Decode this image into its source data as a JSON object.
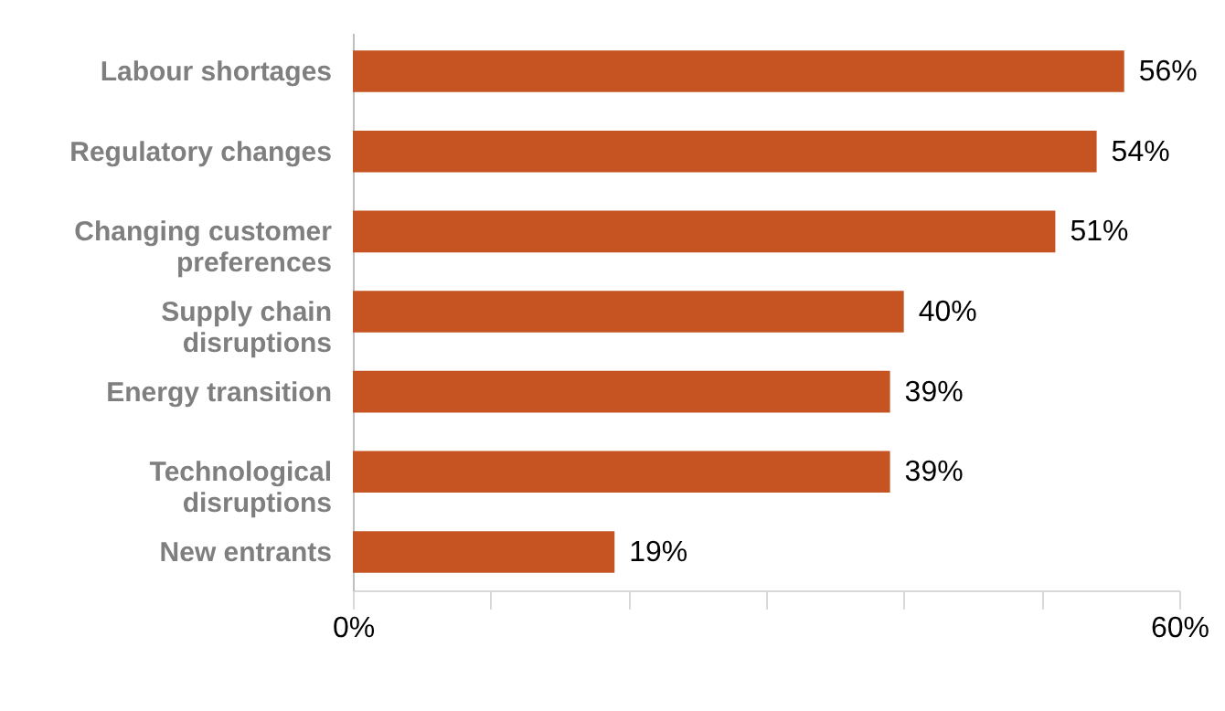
{
  "chart_data": {
    "type": "bar",
    "orientation": "horizontal",
    "categories": [
      "Labour shortages",
      "Regulatory changes",
      "Changing customer preferences",
      "Supply chain disruptions",
      "Energy transition",
      "Technological disruptions",
      "New entrants"
    ],
    "values": [
      56,
      54,
      51,
      40,
      39,
      39,
      19
    ],
    "color": "#c55422",
    "xlim": [
      0,
      60
    ],
    "xticks": [
      {
        "value": 0,
        "label": "0%"
      },
      {
        "value": 10,
        "label": null
      },
      {
        "value": 20,
        "label": null
      },
      {
        "value": 30,
        "label": null
      },
      {
        "value": 40,
        "label": null
      },
      {
        "value": 50,
        "label": null
      },
      {
        "value": 60,
        "label": "60%"
      }
    ],
    "value_labels": [
      "56%",
      "54%",
      "51%",
      "40%",
      "39%",
      "39%",
      "19%"
    ],
    "grid": false
  }
}
